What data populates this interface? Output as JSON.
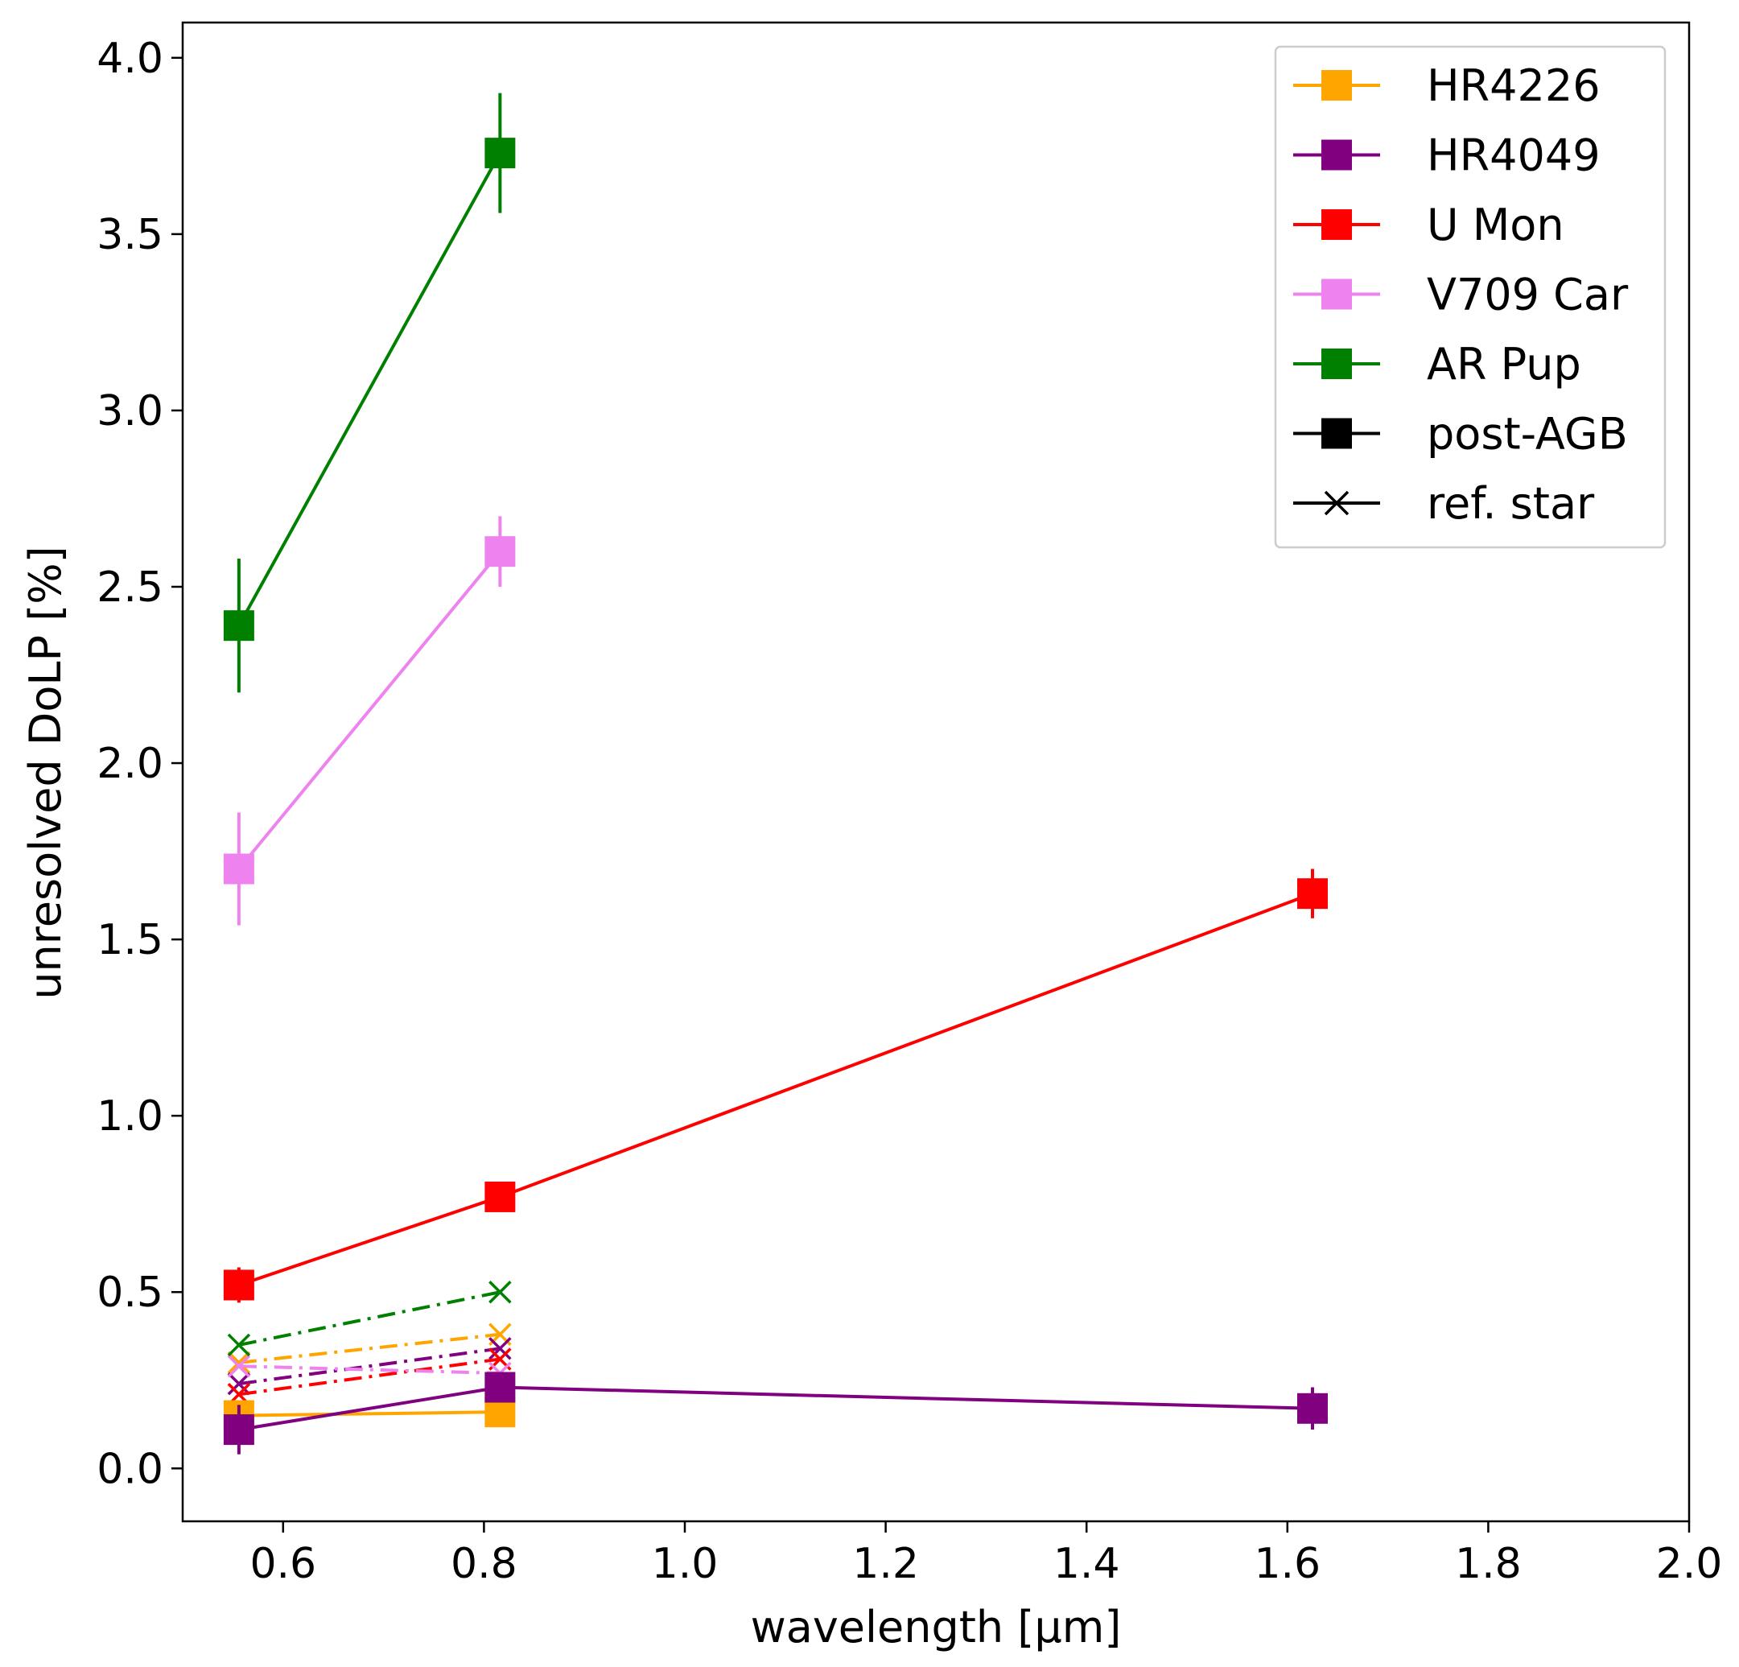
{
  "chart_data": {
    "type": "line",
    "xlabel": "wavelength [μm]",
    "ylabel": "unresolved DoLP [%]",
    "xlim": [
      0.5,
      2.0
    ],
    "ylim": [
      -0.15,
      4.1
    ],
    "xticks": [
      0.6,
      0.8,
      1.0,
      1.2,
      1.4,
      1.6,
      1.8,
      2.0
    ],
    "xtick_labels": [
      "0.6",
      "0.8",
      "1.0",
      "1.2",
      "1.4",
      "1.6",
      "1.8",
      "2.0"
    ],
    "yticks": [
      0.0,
      0.5,
      1.0,
      1.5,
      2.0,
      2.5,
      3.0,
      3.5,
      4.0
    ],
    "ytick_labels": [
      "0.0",
      "0.5",
      "1.0",
      "1.5",
      "2.0",
      "2.5",
      "3.0",
      "3.5",
      "4.0"
    ],
    "grid": false,
    "legend_position": "top-right",
    "series": [
      {
        "name": "HR4226",
        "kind": "post-AGB",
        "color": "#ffa500",
        "x": [
          0.556,
          0.816
        ],
        "y": [
          0.15,
          0.16
        ],
        "yerr": [
          0.02,
          0.02
        ]
      },
      {
        "name": "HR4049",
        "kind": "post-AGB",
        "color": "#800080",
        "x": [
          0.556,
          0.816,
          1.625
        ],
        "y": [
          0.11,
          0.23,
          0.17
        ],
        "yerr": [
          0.07,
          0.03,
          0.06
        ]
      },
      {
        "name": "U Mon",
        "kind": "post-AGB",
        "color": "#ff0000",
        "x": [
          0.556,
          0.816,
          1.625
        ],
        "y": [
          0.52,
          0.77,
          1.63
        ],
        "yerr": [
          0.05,
          0.03,
          0.07
        ]
      },
      {
        "name": "V709 Car",
        "kind": "post-AGB",
        "color": "#ee82ee",
        "x": [
          0.556,
          0.816
        ],
        "y": [
          1.7,
          2.6
        ],
        "yerr": [
          0.16,
          0.1
        ]
      },
      {
        "name": "AR Pup",
        "kind": "post-AGB",
        "color": "#008000",
        "x": [
          0.556,
          0.816
        ],
        "y": [
          2.39,
          3.73
        ],
        "yerr": [
          0.19,
          0.17
        ]
      },
      {
        "name": "HR4226",
        "kind": "ref. star",
        "color": "#ffa500",
        "x": [
          0.556,
          0.816
        ],
        "y": [
          0.3,
          0.38
        ],
        "yerr": [
          0.0,
          0.0
        ]
      },
      {
        "name": "HR4049",
        "kind": "ref. star",
        "color": "#800080",
        "x": [
          0.556,
          0.816
        ],
        "y": [
          0.24,
          0.34
        ],
        "yerr": [
          0.0,
          0.0
        ]
      },
      {
        "name": "U Mon",
        "kind": "ref. star",
        "color": "#ff0000",
        "x": [
          0.556,
          0.816
        ],
        "y": [
          0.21,
          0.31
        ],
        "yerr": [
          0.0,
          0.0
        ]
      },
      {
        "name": "V709 Car",
        "kind": "ref. star",
        "color": "#ee82ee",
        "x": [
          0.556,
          0.816
        ],
        "y": [
          0.29,
          0.27
        ],
        "yerr": [
          0.0,
          0.0
        ]
      },
      {
        "name": "AR Pup",
        "kind": "ref. star",
        "color": "#008000",
        "x": [
          0.556,
          0.816
        ],
        "y": [
          0.35,
          0.5
        ],
        "yerr": [
          0.0,
          0.0
        ]
      }
    ],
    "legend": [
      {
        "label": "HR4226",
        "color": "#ffa500",
        "marker": "square",
        "linestyle": "solid"
      },
      {
        "label": "HR4049",
        "color": "#800080",
        "marker": "square",
        "linestyle": "solid"
      },
      {
        "label": "U Mon",
        "color": "#ff0000",
        "marker": "square",
        "linestyle": "solid"
      },
      {
        "label": "V709 Car",
        "color": "#ee82ee",
        "marker": "square",
        "linestyle": "solid"
      },
      {
        "label": "AR Pup",
        "color": "#008000",
        "marker": "square",
        "linestyle": "solid"
      },
      {
        "label": "post-AGB",
        "color": "#000000",
        "marker": "square",
        "linestyle": "solid"
      },
      {
        "label": "ref. star",
        "color": "#000000",
        "marker": "x",
        "linestyle": "solid"
      }
    ]
  }
}
